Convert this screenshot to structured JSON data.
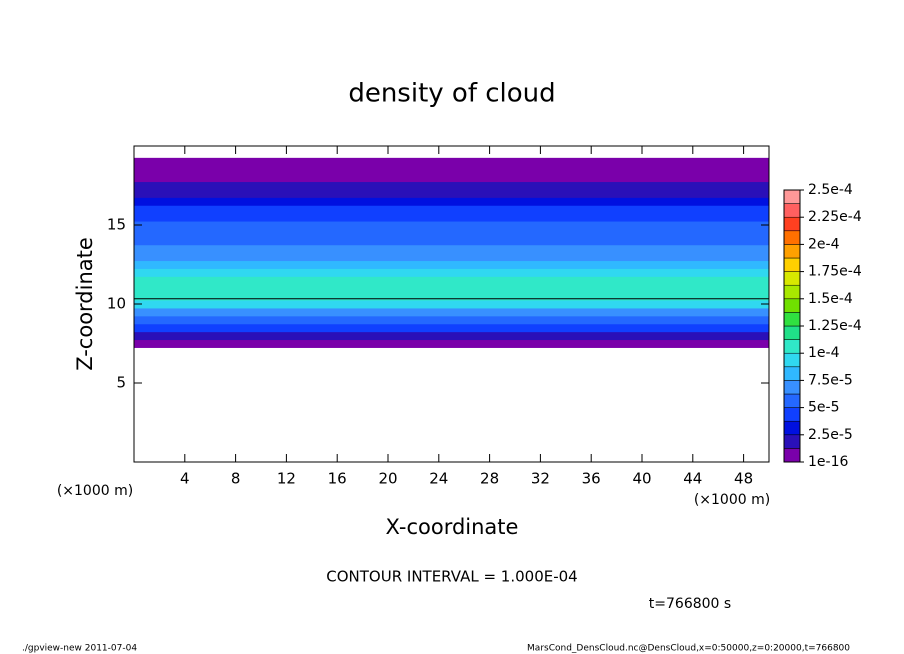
{
  "chart_data": {
    "type": "contour",
    "title": "density of cloud",
    "xlabel": "X-coordinate",
    "ylabel": "Z-coordinate",
    "x_unit": "(×1000 m)",
    "xlim": [
      0,
      50
    ],
    "ylim": [
      0,
      20
    ],
    "xticks": [
      4,
      8,
      12,
      16,
      20,
      24,
      28,
      32,
      36,
      40,
      44,
      48
    ],
    "yticks": [
      5,
      10,
      15
    ],
    "z": [
      7.5,
      8.0,
      8.5,
      9.0,
      9.5,
      10.0,
      10.5,
      11.0,
      11.5,
      12.0,
      12.5,
      13.0,
      13.5,
      14.0,
      14.5,
      15.0,
      15.5,
      16.0,
      16.5,
      17.0,
      17.5,
      18.0,
      18.5,
      19.0
    ],
    "values": [
      5e-06,
      2e-05,
      4e-05,
      6e-05,
      7.5e-05,
      9e-05,
      0.000105,
      0.00011,
      0.00011,
      0.0001,
      8.5e-05,
      7e-05,
      6.5e-05,
      6e-05,
      6e-05,
      5.5e-05,
      5e-05,
      4.5e-05,
      3.5e-05,
      2.5e-05,
      1.5e-05,
      5e-06,
      2e-06,
      1e-06
    ],
    "contour_level": 0.0001,
    "colorbar_ticks": [
      {
        "value": 1e-16,
        "label": "1e-16"
      },
      {
        "value": 2.5e-05,
        "label": "2.5e-5"
      },
      {
        "value": 5e-05,
        "label": "5e-5"
      },
      {
        "value": 7.5e-05,
        "label": "7.5e-5"
      },
      {
        "value": 0.0001,
        "label": "1e-4"
      },
      {
        "value": 0.000125,
        "label": "1.25e-4"
      },
      {
        "value": 0.00015,
        "label": "1.5e-4"
      },
      {
        "value": 0.000175,
        "label": "1.75e-4"
      },
      {
        "value": 0.0002,
        "label": "2e-4"
      },
      {
        "value": 0.000225,
        "label": "2.25e-4"
      },
      {
        "value": 0.00025,
        "label": "2.5e-4"
      }
    ],
    "colors": [
      "#7a00aa",
      "#2a10b8",
      "#0010e0",
      "#1040ff",
      "#2468ff",
      "#3890ff",
      "#30b8ff",
      "#30d8f0",
      "#30e8c8",
      "#20e088",
      "#30e040",
      "#70e000",
      "#a8e800",
      "#d8e800",
      "#ffd000",
      "#ffa000",
      "#ff7000",
      "#ff4020",
      "#ff6060",
      "#ff9898"
    ],
    "contour_interval": "CONTOUR INTERVAL = 1.000E-04",
    "time_label": "t=766800 s",
    "footer_left": "./gpview-new   2011-07-04",
    "footer_right": "MarsCond_DensCloud.nc@DensCloud,x=0:50000,z=0:20000,t=766800"
  }
}
